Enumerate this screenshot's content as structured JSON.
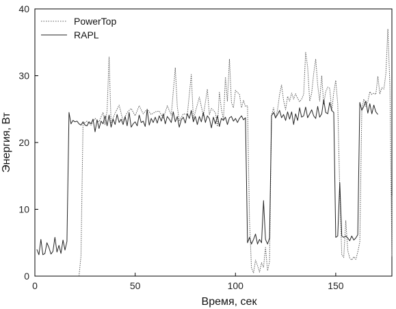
{
  "chart_data": {
    "type": "line",
    "xlabel": "Время, сек",
    "ylabel": "Энергия, Вт",
    "xlim": [
      0,
      178
    ],
    "ylim": [
      0,
      40
    ],
    "xticks": [
      0,
      50,
      100,
      150
    ],
    "yticks": [
      0,
      10,
      20,
      30,
      40
    ],
    "grid": false,
    "legend_position": "top-left",
    "series": [
      {
        "name": "PowerTop",
        "style": "dotted",
        "color": "#555555",
        "points": [
          [
            22,
            0
          ],
          [
            23,
            3
          ],
          [
            24,
            22.8
          ],
          [
            26,
            23.2
          ],
          [
            28,
            22.6
          ],
          [
            30,
            23.6
          ],
          [
            32,
            23.1
          ],
          [
            34,
            24.5
          ],
          [
            35,
            22.7
          ],
          [
            36,
            24.8
          ],
          [
            37,
            32.8
          ],
          [
            38,
            22.9
          ],
          [
            40,
            24.4
          ],
          [
            42,
            25.6
          ],
          [
            44,
            23.2
          ],
          [
            46,
            24.5
          ],
          [
            48,
            25.1
          ],
          [
            50,
            24.0
          ],
          [
            52,
            25.5
          ],
          [
            54,
            24.3
          ],
          [
            56,
            25.0
          ],
          [
            58,
            24.2
          ],
          [
            60,
            24.6
          ],
          [
            62,
            24.7
          ],
          [
            64,
            23.6
          ],
          [
            66,
            25.5
          ],
          [
            68,
            24.1
          ],
          [
            70,
            31.2
          ],
          [
            71,
            25.4
          ],
          [
            72,
            23.2
          ],
          [
            74,
            24.3
          ],
          [
            76,
            24.2
          ],
          [
            78,
            30.2
          ],
          [
            79,
            23.5
          ],
          [
            80,
            24.6
          ],
          [
            82,
            26.8
          ],
          [
            84,
            24.0
          ],
          [
            86,
            28.0
          ],
          [
            87,
            24.2
          ],
          [
            88,
            25.1
          ],
          [
            90,
            24.5
          ],
          [
            91,
            22.4
          ],
          [
            92,
            27.5
          ],
          [
            93,
            25.0
          ],
          [
            94,
            23.4
          ],
          [
            95,
            29.8
          ],
          [
            96,
            26.2
          ],
          [
            97,
            32.5
          ],
          [
            98,
            26.0
          ],
          [
            99,
            25.2
          ],
          [
            100,
            27.8
          ],
          [
            102,
            27.2
          ],
          [
            103,
            25.2
          ],
          [
            104,
            26.3
          ],
          [
            105,
            25.4
          ],
          [
            106,
            25.5
          ],
          [
            107,
            8.3
          ],
          [
            108,
            1.2
          ],
          [
            109,
            0.5
          ],
          [
            110,
            2.4
          ],
          [
            111,
            1.6
          ],
          [
            112,
            0.6
          ],
          [
            113,
            2.0
          ],
          [
            114,
            1.3
          ],
          [
            115,
            4.3
          ],
          [
            116,
            0.8
          ],
          [
            117,
            2.2
          ],
          [
            118,
            24.1
          ],
          [
            119,
            25.2
          ],
          [
            120,
            23.6
          ],
          [
            121,
            24.9
          ],
          [
            122,
            27.2
          ],
          [
            123,
            28.6
          ],
          [
            124,
            26.3
          ],
          [
            125,
            24.9
          ],
          [
            126,
            26.9
          ],
          [
            127,
            26.2
          ],
          [
            128,
            27.4
          ],
          [
            129,
            26.5
          ],
          [
            130,
            27.3
          ],
          [
            131,
            26.6
          ],
          [
            132,
            26.1
          ],
          [
            133,
            26.5
          ],
          [
            134,
            27.2
          ],
          [
            135,
            33.5
          ],
          [
            136,
            31.3
          ],
          [
            137,
            26.2
          ],
          [
            138,
            27.4
          ],
          [
            139,
            30.3
          ],
          [
            140,
            32.5
          ],
          [
            141,
            28.6
          ],
          [
            142,
            26.2
          ],
          [
            143,
            30.0
          ],
          [
            144,
            25.7
          ],
          [
            145,
            27.6
          ],
          [
            146,
            28.3
          ],
          [
            147,
            28.1
          ],
          [
            148,
            24.7
          ],
          [
            149,
            27.5
          ],
          [
            150,
            29.3
          ],
          [
            151,
            25.8
          ],
          [
            152,
            12.8
          ],
          [
            153,
            3.2
          ],
          [
            154,
            2.8
          ],
          [
            155,
            8.3
          ],
          [
            156,
            3.8
          ],
          [
            157,
            2.7
          ],
          [
            158,
            2.4
          ],
          [
            159,
            2.9
          ],
          [
            160,
            2.5
          ],
          [
            161,
            3.6
          ],
          [
            162,
            5.1
          ],
          [
            163,
            24.8
          ],
          [
            164,
            26.5
          ],
          [
            165,
            25.4
          ],
          [
            166,
            26.1
          ],
          [
            167,
            27.6
          ],
          [
            168,
            27.2
          ],
          [
            169,
            27.4
          ],
          [
            170,
            27.2
          ],
          [
            171,
            29.9
          ],
          [
            172,
            27.3
          ],
          [
            173,
            28.2
          ],
          [
            174,
            28.0
          ],
          [
            175,
            30.3
          ],
          [
            176,
            37.0
          ],
          [
            177,
            28.5
          ],
          [
            178,
            3.0
          ],
          [
            179,
            12.0
          ]
        ]
      },
      {
        "name": "RAPL",
        "style": "solid",
        "color": "#222222",
        "points": [
          [
            1,
            4.0
          ],
          [
            2,
            3.2
          ],
          [
            3,
            5.5
          ],
          [
            4,
            3.2
          ],
          [
            5,
            3.4
          ],
          [
            6,
            5.0
          ],
          [
            7,
            4.3
          ],
          [
            8,
            3.3
          ],
          [
            9,
            3.7
          ],
          [
            10,
            5.8
          ],
          [
            11,
            3.6
          ],
          [
            12,
            4.6
          ],
          [
            13,
            3.4
          ],
          [
            14,
            5.4
          ],
          [
            15,
            3.9
          ],
          [
            16,
            5.2
          ],
          [
            17,
            24.5
          ],
          [
            18,
            22.8
          ],
          [
            19,
            23.3
          ],
          [
            20,
            23.1
          ],
          [
            21,
            23.2
          ],
          [
            22,
            22.8
          ],
          [
            23,
            22.6
          ],
          [
            24,
            23.1
          ],
          [
            25,
            22.6
          ],
          [
            26,
            22.5
          ],
          [
            27,
            23.1
          ],
          [
            28,
            22.8
          ],
          [
            29,
            23.5
          ],
          [
            30,
            21.6
          ],
          [
            31,
            23.4
          ],
          [
            32,
            22.1
          ],
          [
            33,
            23.2
          ],
          [
            34,
            22.8
          ],
          [
            35,
            24.0
          ],
          [
            36,
            22.5
          ],
          [
            37,
            24.1
          ],
          [
            38,
            22.3
          ],
          [
            39,
            23.5
          ],
          [
            40,
            22.7
          ],
          [
            41,
            24.2
          ],
          [
            42,
            23.0
          ],
          [
            43,
            23.5
          ],
          [
            44,
            22.7
          ],
          [
            45,
            23.9
          ],
          [
            46,
            22.5
          ],
          [
            47,
            24.5
          ],
          [
            48,
            22.3
          ],
          [
            49,
            22.8
          ],
          [
            50,
            23.1
          ],
          [
            51,
            22.5
          ],
          [
            52,
            24.1
          ],
          [
            53,
            23.0
          ],
          [
            54,
            23.2
          ],
          [
            55,
            22.4
          ],
          [
            56,
            24.9
          ],
          [
            57,
            22.6
          ],
          [
            58,
            23.6
          ],
          [
            59,
            23.0
          ],
          [
            60,
            23.8
          ],
          [
            61,
            22.9
          ],
          [
            62,
            24.0
          ],
          [
            63,
            23.2
          ],
          [
            64,
            24.3
          ],
          [
            65,
            22.8
          ],
          [
            66,
            23.9
          ],
          [
            67,
            23.5
          ],
          [
            68,
            23.0
          ],
          [
            69,
            24.6
          ],
          [
            70,
            23.1
          ],
          [
            71,
            23.9
          ],
          [
            72,
            22.3
          ],
          [
            73,
            23.4
          ],
          [
            74,
            23.8
          ],
          [
            75,
            22.9
          ],
          [
            76,
            24.3
          ],
          [
            77,
            23.6
          ],
          [
            78,
            24.8
          ],
          [
            79,
            23.1
          ],
          [
            80,
            23.9
          ],
          [
            81,
            22.7
          ],
          [
            82,
            23.9
          ],
          [
            83,
            23.1
          ],
          [
            84,
            24.5
          ],
          [
            85,
            23.0
          ],
          [
            86,
            24.0
          ],
          [
            87,
            23.6
          ],
          [
            88,
            22.2
          ],
          [
            89,
            23.8
          ],
          [
            90,
            22.8
          ],
          [
            91,
            24.0
          ],
          [
            92,
            22.4
          ],
          [
            93,
            23.6
          ],
          [
            94,
            23.3
          ],
          [
            95,
            23.8
          ],
          [
            96,
            22.7
          ],
          [
            97,
            23.7
          ],
          [
            98,
            23.9
          ],
          [
            99,
            23.2
          ],
          [
            100,
            23.6
          ],
          [
            101,
            23.0
          ],
          [
            102,
            23.6
          ],
          [
            103,
            24.0
          ],
          [
            104,
            23.4
          ],
          [
            105,
            23.7
          ],
          [
            106,
            5.0
          ],
          [
            107,
            5.8
          ],
          [
            108,
            4.8
          ],
          [
            109,
            5.5
          ],
          [
            110,
            6.3
          ],
          [
            111,
            4.8
          ],
          [
            112,
            5.5
          ],
          [
            113,
            5.0
          ],
          [
            114,
            11.3
          ],
          [
            115,
            5.5
          ],
          [
            116,
            4.8
          ],
          [
            117,
            5.7
          ],
          [
            118,
            24.0
          ],
          [
            119,
            24.5
          ],
          [
            120,
            23.7
          ],
          [
            121,
            24.2
          ],
          [
            122,
            24.8
          ],
          [
            123,
            23.7
          ],
          [
            124,
            24.2
          ],
          [
            125,
            23.3
          ],
          [
            126,
            24.6
          ],
          [
            127,
            23.5
          ],
          [
            128,
            24.6
          ],
          [
            129,
            22.7
          ],
          [
            130,
            24.3
          ],
          [
            131,
            23.3
          ],
          [
            132,
            25.2
          ],
          [
            133,
            23.8
          ],
          [
            134,
            24.0
          ],
          [
            135,
            25.3
          ],
          [
            136,
            23.7
          ],
          [
            137,
            24.3
          ],
          [
            138,
            24.9
          ],
          [
            139,
            24.0
          ],
          [
            140,
            23.6
          ],
          [
            141,
            25.4
          ],
          [
            142,
            23.8
          ],
          [
            143,
            24.3
          ],
          [
            144,
            26.4
          ],
          [
            145,
            24.5
          ],
          [
            146,
            24.3
          ],
          [
            147,
            26.0
          ],
          [
            148,
            24.8
          ],
          [
            149,
            24.5
          ],
          [
            150,
            5.8
          ],
          [
            151,
            6.0
          ],
          [
            152,
            14.0
          ],
          [
            153,
            6.0
          ],
          [
            154,
            5.8
          ],
          [
            155,
            6.0
          ],
          [
            156,
            5.7
          ],
          [
            157,
            5.3
          ],
          [
            158,
            6.0
          ],
          [
            159,
            5.4
          ],
          [
            160,
            5.7
          ],
          [
            161,
            6.2
          ],
          [
            162,
            26.0
          ],
          [
            163,
            24.8
          ],
          [
            164,
            25.4
          ],
          [
            165,
            26.2
          ],
          [
            166,
            24.4
          ],
          [
            167,
            25.8
          ],
          [
            168,
            24.3
          ],
          [
            169,
            25.6
          ],
          [
            170,
            24.6
          ],
          [
            171,
            24.2
          ]
        ]
      }
    ]
  }
}
